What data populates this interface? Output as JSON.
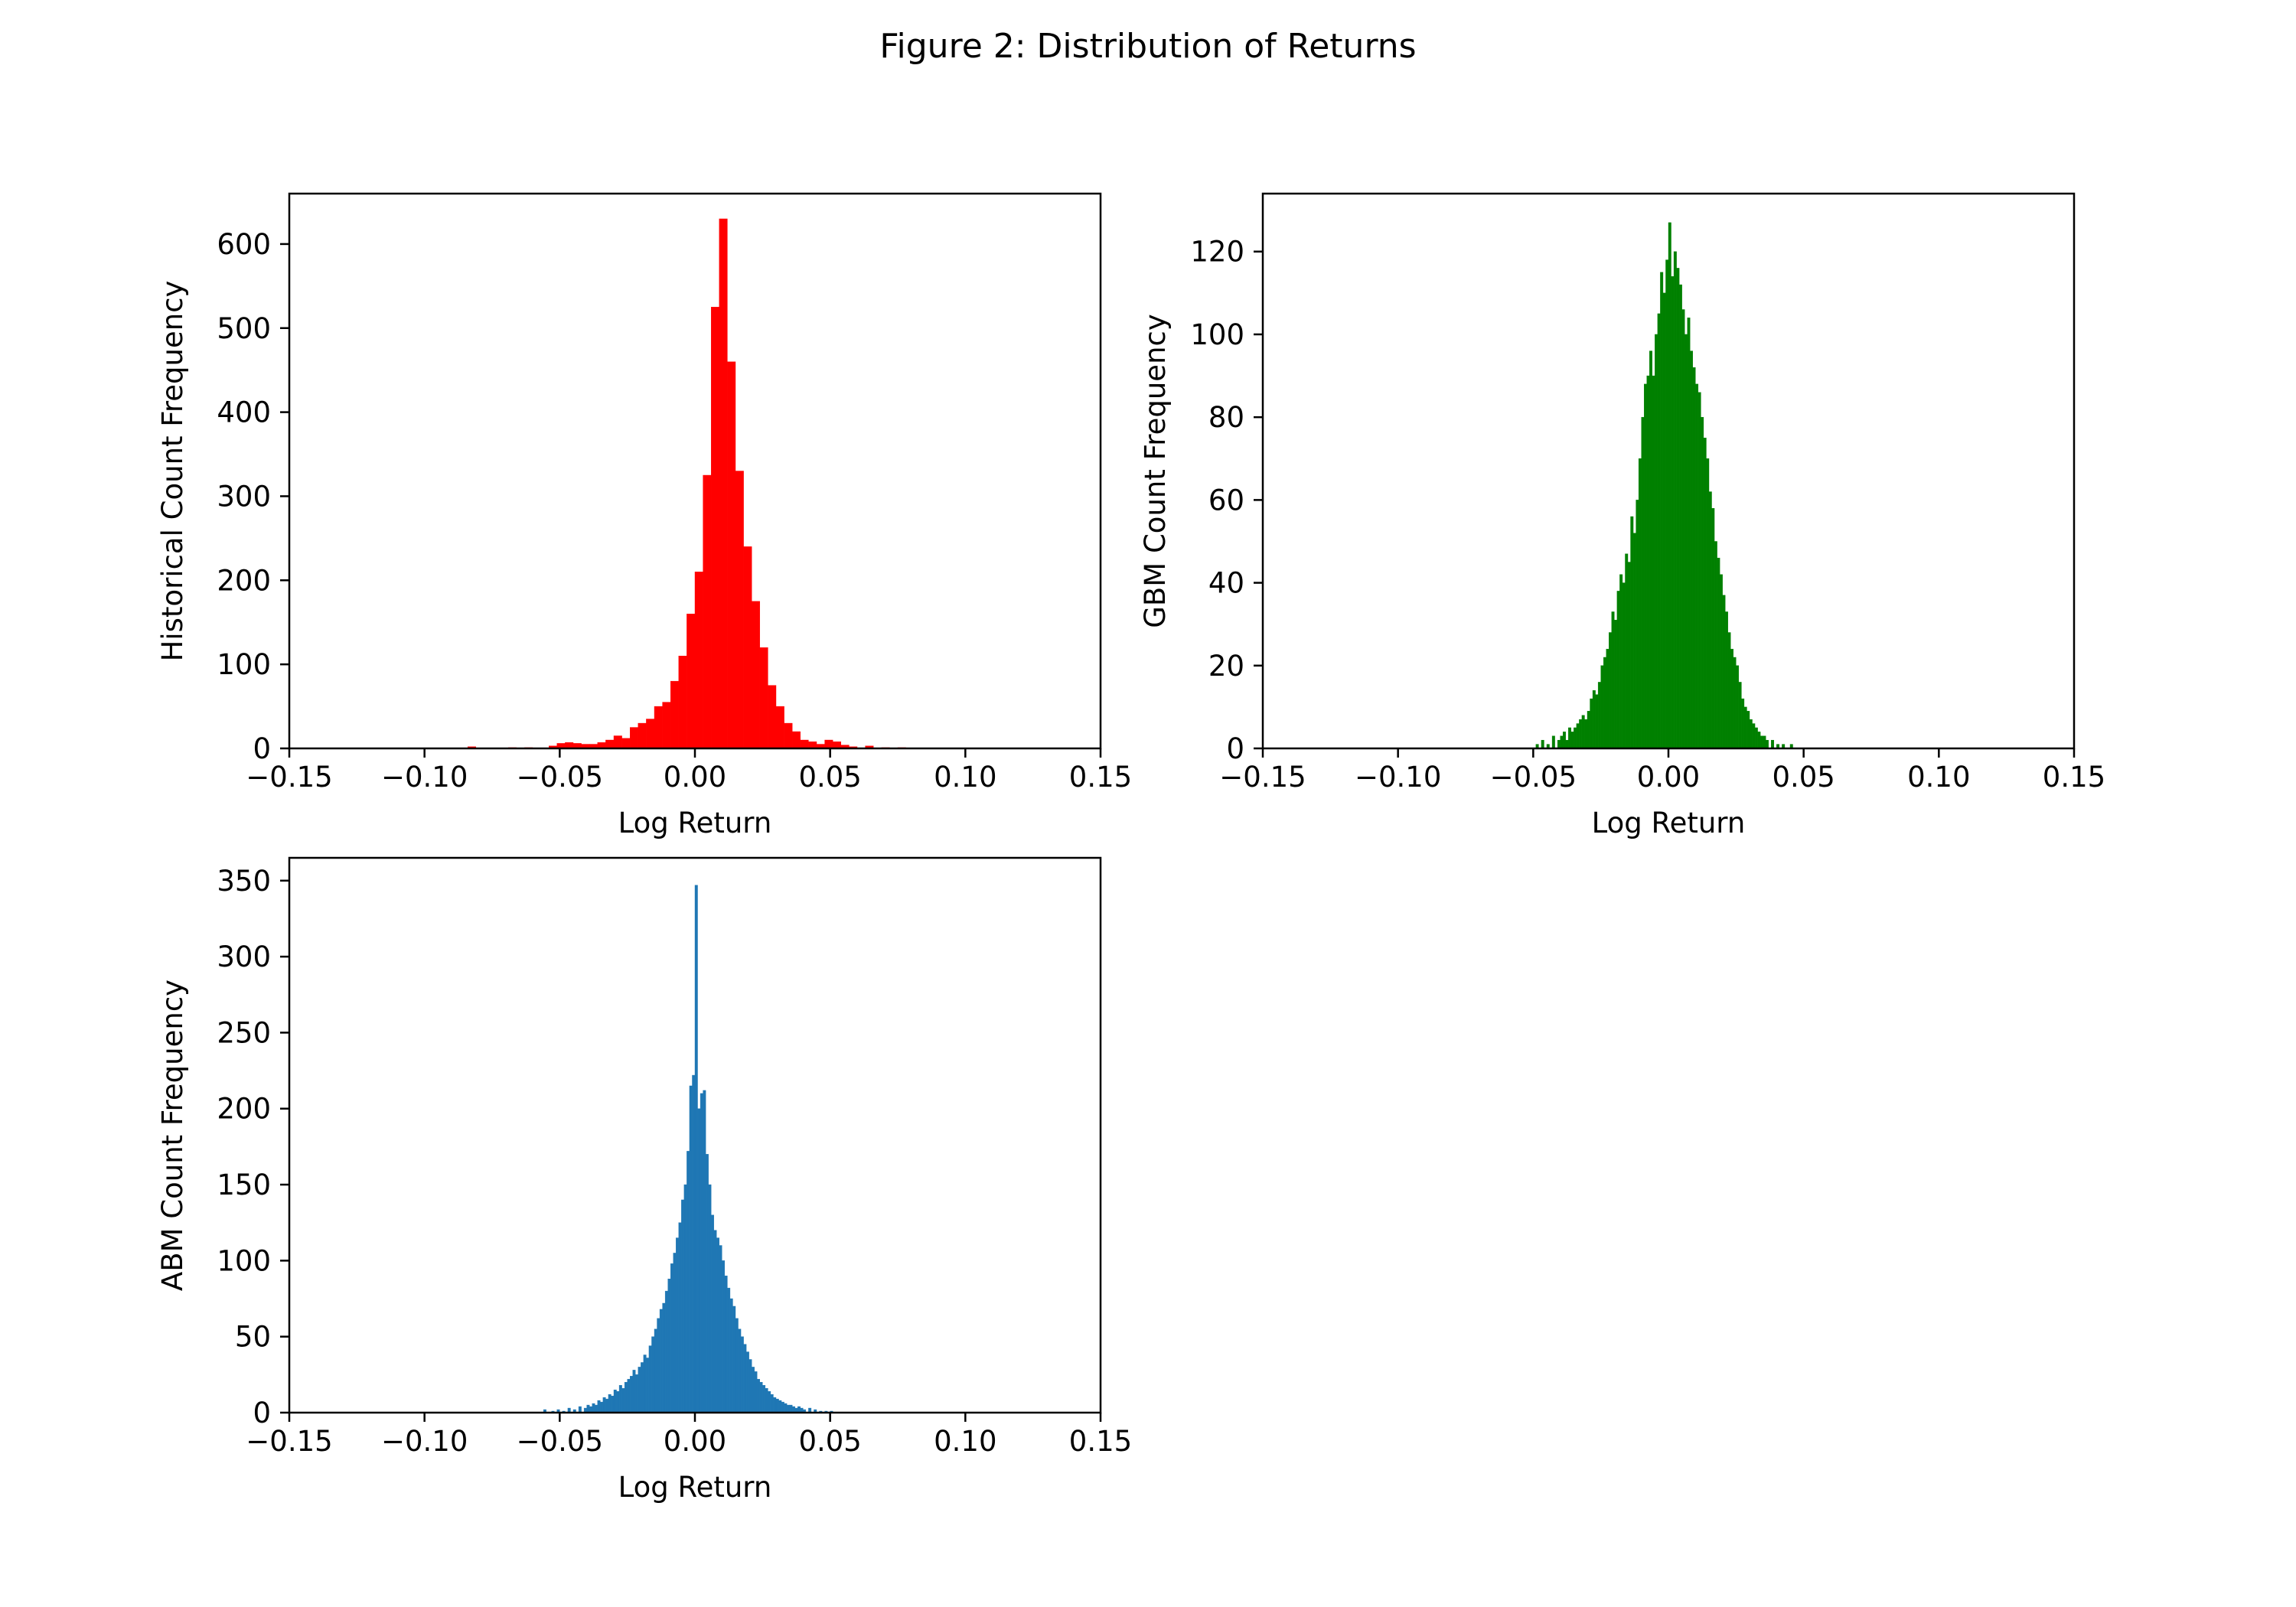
{
  "figure": {
    "title": "Figure 2: Distribution of Returns"
  },
  "chart_data": [
    {
      "type": "bar",
      "subtype": "histogram",
      "id": "historical",
      "color": "#ff0000",
      "xlabel": "Log Return",
      "ylabel": "Historical Count Frequency",
      "xlim": [
        -0.15,
        0.15
      ],
      "ylim": [
        0,
        660
      ],
      "xticks": [
        -0.15,
        -0.1,
        -0.05,
        0.0,
        0.05,
        0.1,
        0.15
      ],
      "xtick_labels": [
        "−0.15",
        "−0.10",
        "−0.05",
        "0.00",
        "0.05",
        "0.10",
        "0.15"
      ],
      "yticks": [
        0,
        100,
        200,
        300,
        400,
        500,
        600
      ],
      "ytick_labels": [
        "0",
        "100",
        "200",
        "300",
        "400",
        "500",
        "600"
      ],
      "bin_width": 0.003,
      "bins": [
        [
          -0.084,
          2
        ],
        [
          -0.069,
          1
        ],
        [
          -0.063,
          1
        ],
        [
          -0.054,
          3
        ],
        [
          -0.051,
          6
        ],
        [
          -0.048,
          7
        ],
        [
          -0.045,
          6
        ],
        [
          -0.042,
          5
        ],
        [
          -0.039,
          5
        ],
        [
          -0.036,
          7
        ],
        [
          -0.033,
          10
        ],
        [
          -0.03,
          15
        ],
        [
          -0.027,
          12
        ],
        [
          -0.024,
          25
        ],
        [
          -0.021,
          30
        ],
        [
          -0.018,
          35
        ],
        [
          -0.015,
          50
        ],
        [
          -0.012,
          55
        ],
        [
          -0.009,
          80
        ],
        [
          -0.006,
          110
        ],
        [
          -0.003,
          160
        ],
        [
          0.0,
          210
        ],
        [
          0.003,
          325
        ],
        [
          0.006,
          525
        ],
        [
          0.009,
          630
        ],
        [
          0.012,
          460
        ],
        [
          0.015,
          330
        ],
        [
          0.018,
          240
        ],
        [
          0.021,
          175
        ],
        [
          0.024,
          120
        ],
        [
          0.027,
          75
        ],
        [
          0.03,
          50
        ],
        [
          0.033,
          30
        ],
        [
          0.036,
          20
        ],
        [
          0.039,
          10
        ],
        [
          0.042,
          8
        ],
        [
          0.045,
          5
        ],
        [
          0.048,
          10
        ],
        [
          0.051,
          8
        ],
        [
          0.054,
          4
        ],
        [
          0.057,
          2
        ],
        [
          0.063,
          3
        ],
        [
          0.069,
          1
        ],
        [
          0.075,
          1
        ]
      ]
    },
    {
      "type": "bar",
      "subtype": "histogram",
      "id": "gbm",
      "color": "#008000",
      "xlabel": "Log Return",
      "ylabel": "GBM Count Frequency",
      "xlim": [
        -0.15,
        0.15
      ],
      "ylim": [
        0,
        134
      ],
      "xticks": [
        -0.15,
        -0.1,
        -0.05,
        0.0,
        0.05,
        0.1,
        0.15
      ],
      "xtick_labels": [
        "−0.15",
        "−0.10",
        "−0.05",
        "0.00",
        "0.05",
        "0.10",
        "0.15"
      ],
      "yticks": [
        0,
        20,
        40,
        60,
        80,
        100,
        120
      ],
      "ytick_labels": [
        "0",
        "20",
        "40",
        "60",
        "80",
        "100",
        "120"
      ],
      "bin_width": 0.001,
      "bins": [
        [
          -0.049,
          1
        ],
        [
          -0.047,
          2
        ],
        [
          -0.045,
          1
        ],
        [
          -0.043,
          3
        ],
        [
          -0.041,
          2
        ],
        [
          -0.04,
          3
        ],
        [
          -0.039,
          4
        ],
        [
          -0.038,
          2
        ],
        [
          -0.037,
          5
        ],
        [
          -0.036,
          4
        ],
        [
          -0.035,
          5
        ],
        [
          -0.034,
          6
        ],
        [
          -0.033,
          7
        ],
        [
          -0.032,
          8
        ],
        [
          -0.031,
          7
        ],
        [
          -0.03,
          9
        ],
        [
          -0.029,
          12
        ],
        [
          -0.028,
          14
        ],
        [
          -0.027,
          13
        ],
        [
          -0.026,
          16
        ],
        [
          -0.025,
          20
        ],
        [
          -0.024,
          22
        ],
        [
          -0.023,
          24
        ],
        [
          -0.022,
          28
        ],
        [
          -0.021,
          33
        ],
        [
          -0.02,
          31
        ],
        [
          -0.019,
          38
        ],
        [
          -0.018,
          42
        ],
        [
          -0.017,
          40
        ],
        [
          -0.016,
          47
        ],
        [
          -0.015,
          45
        ],
        [
          -0.014,
          56
        ],
        [
          -0.013,
          52
        ],
        [
          -0.012,
          60
        ],
        [
          -0.011,
          70
        ],
        [
          -0.01,
          80
        ],
        [
          -0.009,
          88
        ],
        [
          -0.008,
          90
        ],
        [
          -0.007,
          96
        ],
        [
          -0.006,
          90
        ],
        [
          -0.005,
          100
        ],
        [
          -0.004,
          105
        ],
        [
          -0.003,
          115
        ],
        [
          -0.002,
          110
        ],
        [
          -0.001,
          118
        ],
        [
          0.0,
          127
        ],
        [
          0.001,
          114
        ],
        [
          0.002,
          120
        ],
        [
          0.003,
          116
        ],
        [
          0.004,
          112
        ],
        [
          0.005,
          106
        ],
        [
          0.006,
          100
        ],
        [
          0.007,
          104
        ],
        [
          0.008,
          96
        ],
        [
          0.009,
          92
        ],
        [
          0.01,
          88
        ],
        [
          0.011,
          86
        ],
        [
          0.012,
          80
        ],
        [
          0.013,
          75
        ],
        [
          0.014,
          70
        ],
        [
          0.015,
          62
        ],
        [
          0.016,
          58
        ],
        [
          0.017,
          50
        ],
        [
          0.018,
          46
        ],
        [
          0.019,
          42
        ],
        [
          0.02,
          37
        ],
        [
          0.021,
          33
        ],
        [
          0.022,
          28
        ],
        [
          0.023,
          24
        ],
        [
          0.024,
          22
        ],
        [
          0.025,
          20
        ],
        [
          0.026,
          16
        ],
        [
          0.027,
          12
        ],
        [
          0.028,
          10
        ],
        [
          0.029,
          9
        ],
        [
          0.03,
          7
        ],
        [
          0.031,
          6
        ],
        [
          0.032,
          5
        ],
        [
          0.033,
          4
        ],
        [
          0.034,
          3
        ],
        [
          0.035,
          3
        ],
        [
          0.036,
          2
        ],
        [
          0.038,
          2
        ],
        [
          0.04,
          1
        ],
        [
          0.042,
          1
        ],
        [
          0.045,
          1
        ]
      ]
    },
    {
      "type": "bar",
      "subtype": "histogram",
      "id": "abm",
      "color": "#1f77b4",
      "xlabel": "Log Return",
      "ylabel": "ABM Count Frequency",
      "xlim": [
        -0.15,
        0.15
      ],
      "ylim": [
        0,
        365
      ],
      "xticks": [
        -0.15,
        -0.1,
        -0.05,
        0.0,
        0.05,
        0.1,
        0.15
      ],
      "xtick_labels": [
        "−0.15",
        "−0.10",
        "−0.05",
        "0.00",
        "0.05",
        "0.10",
        "0.15"
      ],
      "yticks": [
        0,
        50,
        100,
        150,
        200,
        250,
        300,
        350
      ],
      "ytick_labels": [
        "0",
        "50",
        "100",
        "150",
        "200",
        "250",
        "300",
        "350"
      ],
      "bin_width": 0.001,
      "bins": [
        [
          -0.056,
          2
        ],
        [
          -0.053,
          1
        ],
        [
          -0.051,
          2
        ],
        [
          -0.049,
          1
        ],
        [
          -0.047,
          3
        ],
        [
          -0.045,
          2
        ],
        [
          -0.043,
          4
        ],
        [
          -0.041,
          3
        ],
        [
          -0.04,
          5
        ],
        [
          -0.039,
          4
        ],
        [
          -0.038,
          6
        ],
        [
          -0.037,
          5
        ],
        [
          -0.036,
          8
        ],
        [
          -0.035,
          7
        ],
        [
          -0.034,
          10
        ],
        [
          -0.033,
          9
        ],
        [
          -0.032,
          12
        ],
        [
          -0.031,
          11
        ],
        [
          -0.03,
          15
        ],
        [
          -0.029,
          14
        ],
        [
          -0.028,
          18
        ],
        [
          -0.027,
          16
        ],
        [
          -0.026,
          20
        ],
        [
          -0.025,
          22
        ],
        [
          -0.024,
          24
        ],
        [
          -0.023,
          28
        ],
        [
          -0.022,
          25
        ],
        [
          -0.021,
          30
        ],
        [
          -0.02,
          33
        ],
        [
          -0.019,
          38
        ],
        [
          -0.018,
          36
        ],
        [
          -0.017,
          44
        ],
        [
          -0.016,
          50
        ],
        [
          -0.015,
          55
        ],
        [
          -0.014,
          62
        ],
        [
          -0.013,
          68
        ],
        [
          -0.012,
          72
        ],
        [
          -0.011,
          80
        ],
        [
          -0.01,
          88
        ],
        [
          -0.009,
          98
        ],
        [
          -0.008,
          105
        ],
        [
          -0.007,
          115
        ],
        [
          -0.006,
          125
        ],
        [
          -0.005,
          140
        ],
        [
          -0.004,
          150
        ],
        [
          -0.003,
          172
        ],
        [
          -0.002,
          215
        ],
        [
          -0.001,
          222
        ],
        [
          0.0,
          347
        ],
        [
          0.001,
          200
        ],
        [
          0.002,
          210
        ],
        [
          0.003,
          212
        ],
        [
          0.004,
          170
        ],
        [
          0.005,
          150
        ],
        [
          0.006,
          130
        ],
        [
          0.007,
          120
        ],
        [
          0.008,
          115
        ],
        [
          0.009,
          110
        ],
        [
          0.01,
          100
        ],
        [
          0.011,
          90
        ],
        [
          0.012,
          82
        ],
        [
          0.013,
          75
        ],
        [
          0.014,
          70
        ],
        [
          0.015,
          62
        ],
        [
          0.016,
          55
        ],
        [
          0.017,
          50
        ],
        [
          0.018,
          45
        ],
        [
          0.019,
          40
        ],
        [
          0.02,
          35
        ],
        [
          0.021,
          30
        ],
        [
          0.022,
          27
        ],
        [
          0.023,
          22
        ],
        [
          0.024,
          20
        ],
        [
          0.025,
          18
        ],
        [
          0.026,
          16
        ],
        [
          0.027,
          14
        ],
        [
          0.028,
          12
        ],
        [
          0.029,
          10
        ],
        [
          0.03,
          9
        ],
        [
          0.031,
          8
        ],
        [
          0.032,
          7
        ],
        [
          0.033,
          6
        ],
        [
          0.034,
          5
        ],
        [
          0.035,
          5
        ],
        [
          0.036,
          4
        ],
        [
          0.037,
          3
        ],
        [
          0.038,
          4
        ],
        [
          0.039,
          3
        ],
        [
          0.04,
          2
        ],
        [
          0.042,
          3
        ],
        [
          0.044,
          2
        ],
        [
          0.046,
          1
        ],
        [
          0.048,
          1
        ],
        [
          0.05,
          1
        ]
      ]
    }
  ]
}
